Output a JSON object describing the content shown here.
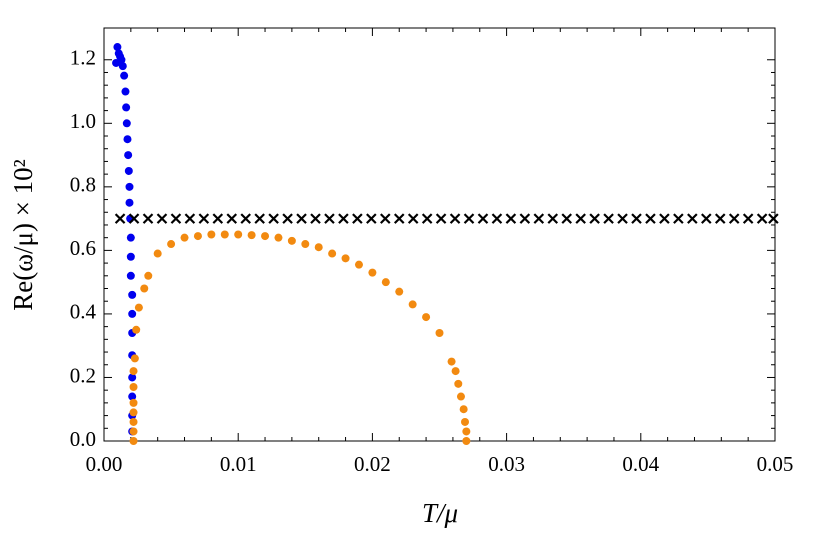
{
  "chart_data": {
    "type": "scatter",
    "xlabel": "T/μ",
    "ylabel": "Re(ω/μ) × 10²",
    "xlim": [
      0,
      0.05
    ],
    "ylim": [
      0,
      1.3
    ],
    "xticks": [
      {
        "value": 0,
        "label": "0.00"
      },
      0.01,
      0.02,
      0.03,
      0.04,
      0.05
    ],
    "yticks": [
      {
        "value": 0,
        "label": "0.0"
      },
      0.2,
      0.4,
      0.6,
      0.8,
      {
        "value": 1,
        "label": "1.0"
      },
      1.2
    ],
    "series": [
      {
        "marker": "circle",
        "color": "#0000ee",
        "x": [
          0.0009,
          0.001,
          0.0011,
          0.0012,
          0.0013,
          0.0014,
          0.0015,
          0.0016,
          0.00165,
          0.0017,
          0.00175,
          0.0018,
          0.00185,
          0.0019,
          0.0019,
          0.00195,
          0.002,
          0.002,
          0.002,
          0.0021,
          0.0021,
          0.0021,
          0.0021,
          0.0021,
          0.0021,
          0.0021,
          0.0021
        ],
        "values": [
          1.19,
          1.24,
          1.22,
          1.21,
          1.2,
          1.18,
          1.15,
          1.1,
          1.05,
          1.0,
          0.95,
          0.9,
          0.85,
          0.8,
          0.75,
          0.7,
          0.64,
          0.58,
          0.52,
          0.46,
          0.4,
          0.34,
          0.27,
          0.2,
          0.14,
          0.08,
          0.03
        ]
      },
      {
        "marker": "circle",
        "color": "#f28a10",
        "x": [
          0.0022,
          0.0022,
          0.0022,
          0.0022,
          0.0022,
          0.0022,
          0.0022,
          0.0023,
          0.0024,
          0.0026,
          0.003,
          0.0033,
          0.004,
          0.005,
          0.006,
          0.007,
          0.008,
          0.009,
          0.01,
          0.011,
          0.012,
          0.013,
          0.014,
          0.015,
          0.016,
          0.017,
          0.018,
          0.019,
          0.02,
          0.021,
          0.022,
          0.023,
          0.024,
          0.025,
          0.0259,
          0.0262,
          0.0264,
          0.0266,
          0.0268,
          0.0269,
          0.027,
          0.027
        ],
        "values": [
          0.0,
          0.03,
          0.06,
          0.09,
          0.12,
          0.17,
          0.22,
          0.26,
          0.35,
          0.42,
          0.48,
          0.52,
          0.59,
          0.62,
          0.64,
          0.645,
          0.65,
          0.65,
          0.65,
          0.648,
          0.645,
          0.64,
          0.63,
          0.62,
          0.61,
          0.59,
          0.575,
          0.555,
          0.53,
          0.5,
          0.47,
          0.43,
          0.39,
          0.34,
          0.25,
          0.22,
          0.18,
          0.14,
          0.1,
          0.06,
          0.03,
          0.0
        ]
      },
      {
        "marker": "x",
        "color": "#000000",
        "x": [
          0.0012,
          0.00224,
          0.00328,
          0.00432,
          0.00536,
          0.0064,
          0.00744,
          0.00848,
          0.00952,
          0.01056,
          0.0116,
          0.01264,
          0.01368,
          0.01472,
          0.01576,
          0.0168,
          0.01784,
          0.01888,
          0.01992,
          0.02096,
          0.022,
          0.02304,
          0.02408,
          0.02512,
          0.02616,
          0.0272,
          0.02824,
          0.02928,
          0.03032,
          0.03136,
          0.0324,
          0.03344,
          0.03448,
          0.03552,
          0.03656,
          0.0376,
          0.03864,
          0.03968,
          0.04072,
          0.04176,
          0.0428,
          0.04384,
          0.04488,
          0.04592,
          0.04696,
          0.048,
          0.04904,
          0.04988
        ],
        "values": [
          0.7,
          0.7,
          0.7,
          0.7,
          0.7,
          0.7,
          0.7,
          0.7,
          0.7,
          0.7,
          0.7,
          0.7,
          0.7,
          0.7,
          0.7,
          0.7,
          0.7,
          0.7,
          0.7,
          0.7,
          0.7,
          0.7,
          0.7,
          0.7,
          0.7,
          0.7,
          0.7,
          0.7,
          0.7,
          0.7,
          0.7,
          0.7,
          0.7,
          0.7,
          0.7,
          0.7,
          0.7,
          0.7,
          0.7,
          0.7,
          0.7,
          0.7,
          0.7,
          0.7,
          0.7,
          0.7,
          0.7,
          0.7
        ]
      }
    ]
  }
}
